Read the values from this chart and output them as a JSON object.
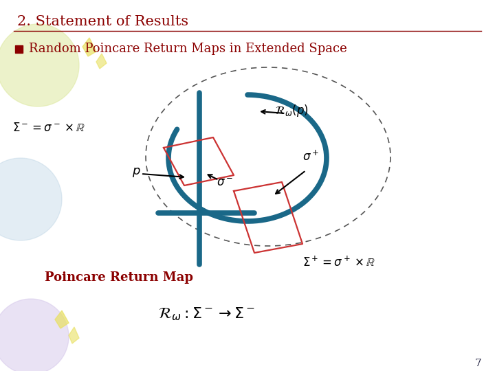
{
  "title": "2. Statement of Results",
  "subtitle": "Random Poincare Return Maps in Extended Space",
  "bg_color": "#ffffff",
  "title_color": "#8B0000",
  "subtitle_color": "#8B0000",
  "page_number": "7",
  "dark_teal": "#1a6888",
  "red_shape": "#cc3333",
  "arrow_color": "#111111",
  "dashed_color": "#666666",
  "label_sigma_minus": "$\\Sigma^-=\\sigma^-\\times\\mathbb{R}$",
  "label_sigma_plus": "$\\Sigma^+=\\sigma^+\\times\\mathbb{R}$",
  "label_R": "$\\mathcal{R}_\\omega(p)$",
  "label_sp": "$\\sigma^+$",
  "label_sm": "$\\sigma^-$",
  "label_p": "$p$",
  "label_poincare": "Poincare Return Map",
  "label_formula": "$\\mathcal{R}_\\omega:\\Sigma^-\\rightarrow\\Sigma^-$"
}
